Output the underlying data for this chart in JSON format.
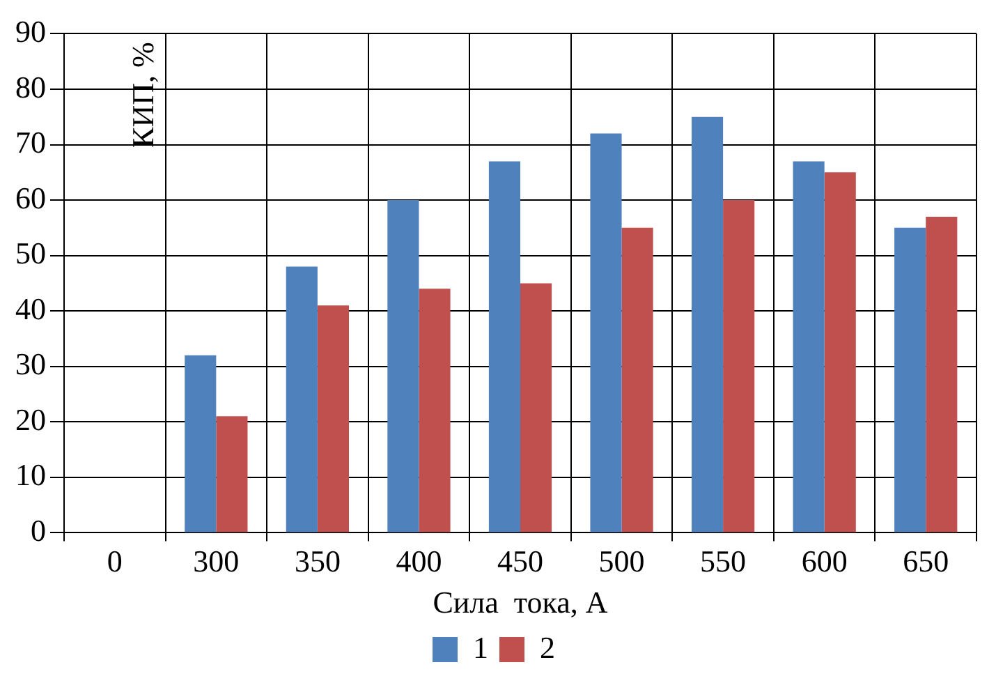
{
  "chart_data": {
    "type": "bar",
    "xlabel": "Сила  тока, А",
    "ylabel": "КИП, %",
    "categories": [
      "0",
      "300",
      "350",
      "400",
      "450",
      "500",
      "550",
      "600",
      "650"
    ],
    "series": [
      {
        "name": "1",
        "color": "#4f81bd",
        "values": [
          null,
          32,
          48,
          60,
          67,
          72,
          75,
          67,
          55
        ]
      },
      {
        "name": "2",
        "color": "#c0504d",
        "values": [
          null,
          21,
          41,
          44,
          45,
          55,
          60,
          65,
          57
        ]
      }
    ],
    "ylim": [
      0,
      90
    ],
    "yticks": [
      0,
      10,
      20,
      30,
      40,
      50,
      60,
      70,
      80,
      90
    ],
    "grid": true,
    "legend": "bottom"
  }
}
